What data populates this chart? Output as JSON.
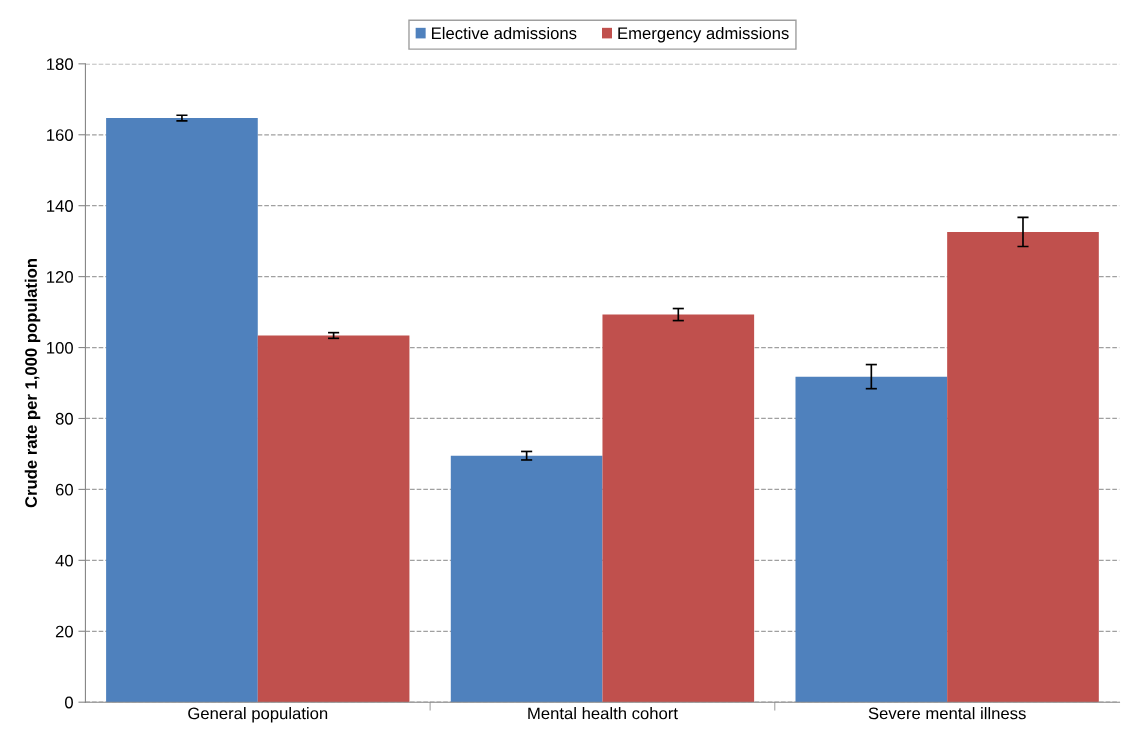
{
  "chart_data": {
    "type": "bar",
    "ylabel": "Crude rate per 1,000 population",
    "categories": [
      "General population",
      "Mental health cohort",
      "Severe mental illness"
    ],
    "series": [
      {
        "name": "Elective admissions",
        "color": "#4f81bd",
        "values": [
          164.7,
          69.5,
          91.8
        ],
        "errors": [
          0.8,
          1.2,
          3.4
        ]
      },
      {
        "name": "Emergency admissions",
        "color": "#c0504d",
        "values": [
          103.4,
          109.3,
          132.6
        ],
        "errors": [
          0.8,
          1.7,
          4.1
        ]
      }
    ],
    "ylim": [
      0,
      180
    ],
    "yticks": [
      0,
      20,
      40,
      60,
      80,
      100,
      120,
      140,
      160,
      180
    ],
    "grid": "y",
    "legend": "top"
  }
}
